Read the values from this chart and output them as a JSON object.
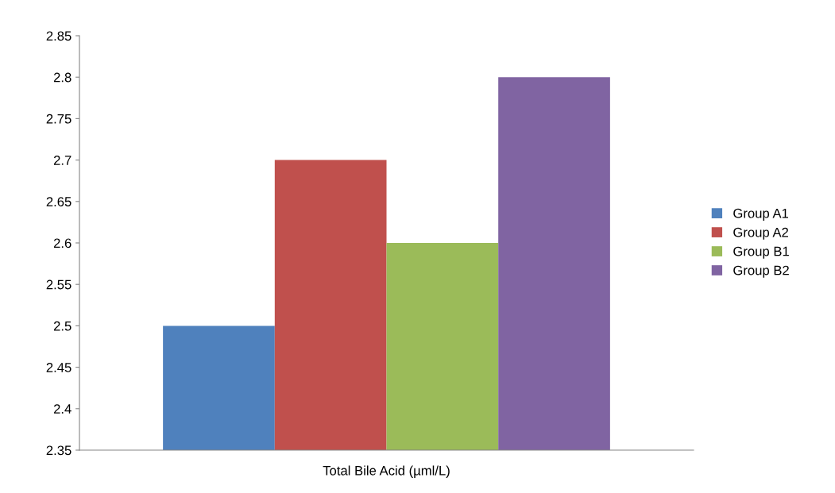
{
  "chart_data": {
    "type": "bar",
    "categories": [
      "Total Bile Acid (µml/L)"
    ],
    "series": [
      {
        "name": "Group A1",
        "color": "#4f81bd",
        "values": [
          2.5
        ]
      },
      {
        "name": "Group A2",
        "color": "#c0504d",
        "values": [
          2.7
        ]
      },
      {
        "name": "Group B1",
        "color": "#9bbb59",
        "values": [
          2.6
        ]
      },
      {
        "name": "Group B2",
        "color": "#8064a2",
        "values": [
          2.8
        ]
      }
    ],
    "ylim": [
      2.35,
      2.85
    ],
    "yticks": [
      2.35,
      2.4,
      2.45,
      2.5,
      2.55,
      2.6,
      2.65,
      2.7,
      2.75,
      2.8,
      2.85
    ],
    "grid": false,
    "legend": "right"
  }
}
